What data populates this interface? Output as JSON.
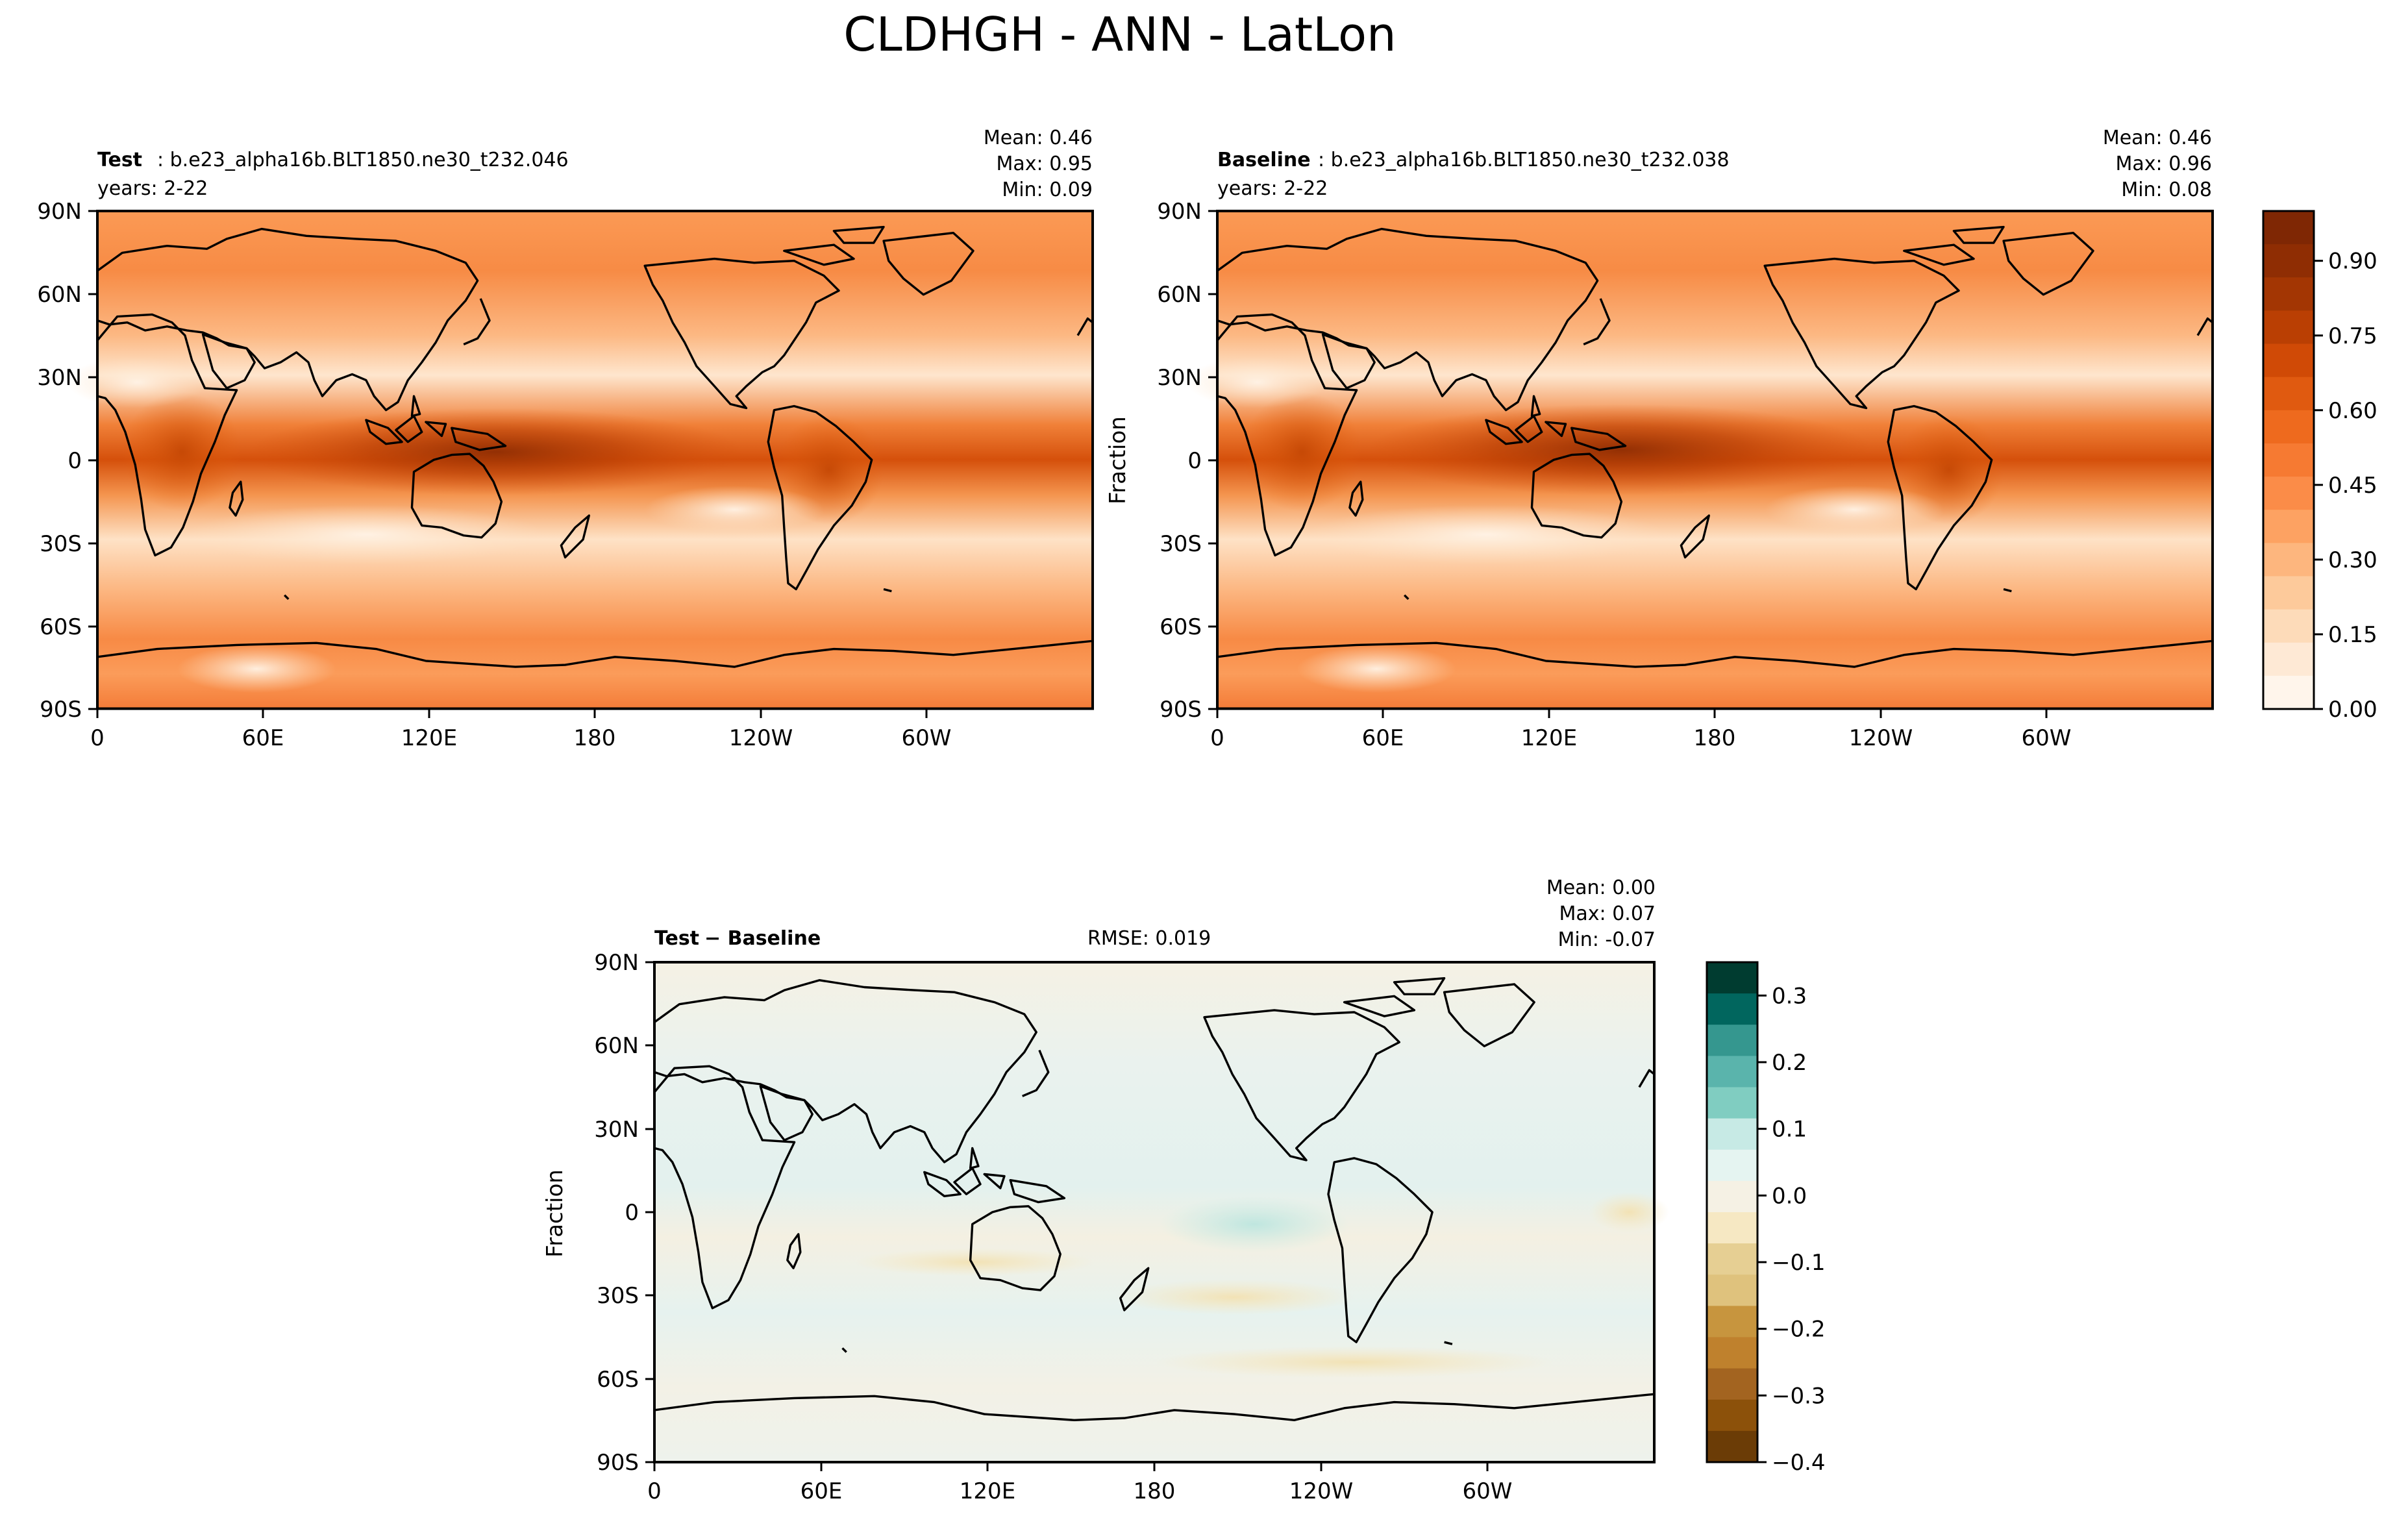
{
  "title": "CLDHGH - ANN - LatLon",
  "chart_data": [
    {
      "id": "test",
      "type": "heatmap",
      "label_bold": "Test",
      "label_rest": ": b.e23_alpha16b.BLT1850.ne30_t232.046",
      "subtitle": "years: 2-22",
      "stats": [
        "Mean:  0.46",
        "Max:  0.95",
        "Min:  0.09"
      ],
      "ylabel": "",
      "x_ticks": [
        "0",
        "60E",
        "120E",
        "180",
        "120W",
        "60W"
      ],
      "y_ticks": [
        "90N",
        "60N",
        "30N",
        "0",
        "30S",
        "60S",
        "90S"
      ],
      "value_range": [
        0.09,
        0.95
      ]
    },
    {
      "id": "baseline",
      "type": "heatmap",
      "label_bold": "Baseline",
      "label_rest": ": b.e23_alpha16b.BLT1850.ne30_t232.038",
      "subtitle": "years: 2-22",
      "stats": [
        "Mean:  0.46",
        "Max:  0.96",
        "Min:  0.08"
      ],
      "ylabel": "Fraction",
      "x_ticks": [
        "0",
        "60E",
        "120E",
        "180",
        "120W",
        "60W"
      ],
      "y_ticks": [
        "90N",
        "60N",
        "30N",
        "0",
        "30S",
        "60S",
        "90S"
      ],
      "value_range": [
        0.08,
        0.96
      ],
      "colorbar": {
        "ticks": [
          "0.00",
          "0.15",
          "0.30",
          "0.45",
          "0.60",
          "0.75",
          "0.90"
        ],
        "tick_values": [
          0.0,
          0.15,
          0.3,
          0.45,
          0.6,
          0.75,
          0.9
        ],
        "range": [
          0.0,
          1.0
        ],
        "colors": [
          "#fff5eb",
          "#fee9d5",
          "#fddbb9",
          "#fdca9b",
          "#fdb67e",
          "#fda262",
          "#fb8c48",
          "#f67a32",
          "#ee6a1e",
          "#e05a10",
          "#d04a06",
          "#ba3f03",
          "#a33603",
          "#8f2d03",
          "#7f2704"
        ]
      }
    },
    {
      "id": "diff",
      "type": "heatmap",
      "label_bold": "Test",
      "label_rest": "− Baseline",
      "rmse": "RMSE: 0.019",
      "stats": [
        "Mean:  0.00",
        "Max:  0.07",
        "Min: -0.07"
      ],
      "ylabel": "Fraction",
      "x_ticks": [
        "0",
        "60E",
        "120E",
        "180",
        "120W",
        "60W"
      ],
      "y_ticks": [
        "90N",
        "60N",
        "30N",
        "0",
        "30S",
        "60S",
        "90S"
      ],
      "value_range": [
        -0.07,
        0.07
      ],
      "colorbar": {
        "ticks": [
          "0.3",
          "0.2",
          "0.1",
          "0.0",
          "−0.1",
          "−0.2",
          "−0.3",
          "−0.4"
        ],
        "tick_values": [
          0.3,
          0.2,
          0.1,
          0.0,
          -0.1,
          -0.2,
          -0.3,
          -0.4
        ],
        "range": [
          -0.4,
          0.35
        ],
        "colors": [
          "#003c30",
          "#01665e",
          "#35978f",
          "#5ab4ac",
          "#80cdc1",
          "#c7eae5",
          "#e5f4f1",
          "#f5f1e4",
          "#f6e8c3",
          "#e6cf93",
          "#dfc27d",
          "#c7953e",
          "#bf812d",
          "#a36420",
          "#8c510a",
          "#6b3c06"
        ]
      }
    }
  ]
}
